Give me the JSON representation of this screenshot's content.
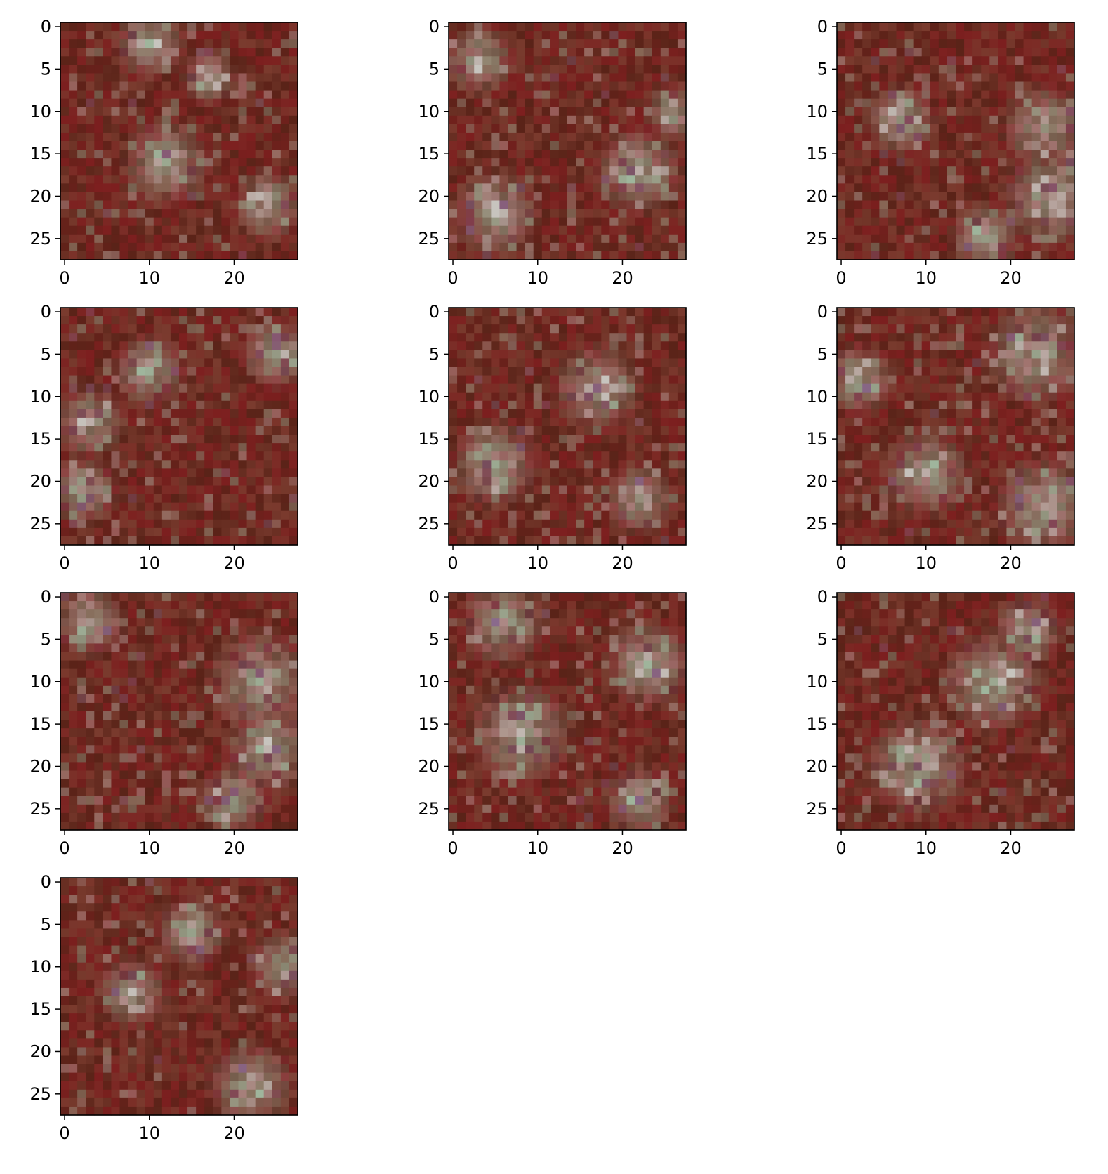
{
  "figure": {
    "background": "#ffffff",
    "layout": {
      "rows": 4,
      "cols": 3
    },
    "panel_count": 10
  },
  "panels": [
    {
      "image_shape": [
        28,
        28
      ],
      "xticks": [
        "0",
        "10",
        "20"
      ],
      "yticks": [
        "0",
        "5",
        "10",
        "15",
        "20",
        "25"
      ],
      "seed": 11,
      "blobs": [
        [
          10,
          2,
          3
        ],
        [
          12,
          16,
          4
        ],
        [
          24,
          21,
          3
        ],
        [
          17,
          6,
          2
        ]
      ]
    },
    {
      "image_shape": [
        28,
        28
      ],
      "xticks": [
        "0",
        "10",
        "20"
      ],
      "yticks": [
        "0",
        "5",
        "10",
        "15",
        "20",
        "25"
      ],
      "seed": 23,
      "blobs": [
        [
          3,
          4,
          3
        ],
        [
          22,
          17,
          4
        ],
        [
          5,
          22,
          4
        ],
        [
          26,
          10,
          2
        ]
      ]
    },
    {
      "image_shape": [
        28,
        28
      ],
      "xticks": [
        "0",
        "10",
        "20"
      ],
      "yticks": [
        "0",
        "5",
        "10",
        "15",
        "20",
        "25"
      ],
      "seed": 37,
      "blobs": [
        [
          24,
          12,
          4
        ],
        [
          25,
          20,
          5
        ],
        [
          7,
          11,
          3
        ],
        [
          17,
          25,
          3
        ]
      ]
    },
    {
      "image_shape": [
        28,
        28
      ],
      "xticks": [
        "0",
        "10",
        "20"
      ],
      "yticks": [
        "0",
        "5",
        "10",
        "15",
        "20",
        "25"
      ],
      "seed": 41,
      "blobs": [
        [
          3,
          13,
          3
        ],
        [
          2,
          21,
          3
        ],
        [
          25,
          5,
          3
        ],
        [
          10,
          7,
          3
        ]
      ]
    },
    {
      "image_shape": [
        28,
        28
      ],
      "xticks": [
        "0",
        "10",
        "20"
      ],
      "yticks": [
        "0",
        "5",
        "10",
        "15",
        "20",
        "25"
      ],
      "seed": 53,
      "blobs": [
        [
          5,
          18,
          4
        ],
        [
          17,
          9,
          4
        ],
        [
          22,
          22,
          3
        ]
      ]
    },
    {
      "image_shape": [
        28,
        28
      ],
      "xticks": [
        "0",
        "10",
        "20"
      ],
      "yticks": [
        "0",
        "5",
        "10",
        "15",
        "20",
        "25"
      ],
      "seed": 67,
      "blobs": [
        [
          23,
          5,
          5
        ],
        [
          24,
          23,
          5
        ],
        [
          10,
          19,
          4
        ],
        [
          2,
          8,
          3
        ]
      ]
    },
    {
      "image_shape": [
        28,
        28
      ],
      "xticks": [
        "0",
        "10",
        "20"
      ],
      "yticks": [
        "0",
        "5",
        "10",
        "15",
        "20",
        "25"
      ],
      "seed": 79,
      "blobs": [
        [
          23,
          10,
          5
        ],
        [
          24,
          18,
          4
        ],
        [
          3,
          3,
          3
        ],
        [
          20,
          24,
          3
        ]
      ]
    },
    {
      "image_shape": [
        28,
        28
      ],
      "xticks": [
        "0",
        "10",
        "20"
      ],
      "yticks": [
        "0",
        "5",
        "10",
        "15",
        "20",
        "25"
      ],
      "seed": 83,
      "blobs": [
        [
          6,
          3,
          4
        ],
        [
          8,
          16,
          5
        ],
        [
          23,
          8,
          4
        ],
        [
          22,
          24,
          3
        ]
      ]
    },
    {
      "image_shape": [
        28,
        28
      ],
      "xticks": [
        "0",
        "10",
        "20"
      ],
      "yticks": [
        "0",
        "5",
        "10",
        "15",
        "20",
        "25"
      ],
      "seed": 97,
      "blobs": [
        [
          18,
          10,
          5
        ],
        [
          9,
          20,
          5
        ],
        [
          22,
          4,
          3
        ]
      ]
    },
    {
      "image_shape": [
        28,
        28
      ],
      "xticks": [
        "0",
        "10",
        "20"
      ],
      "yticks": [
        "0",
        "5",
        "10",
        "15",
        "20",
        "25"
      ],
      "seed": 101,
      "blobs": [
        [
          22,
          24,
          4
        ],
        [
          8,
          13,
          3
        ],
        [
          26,
          10,
          3
        ],
        [
          15,
          6,
          3
        ]
      ]
    }
  ],
  "palette": {
    "base_dark": "#5a2318",
    "base_mid": "#7a3b2e",
    "base_red": "#7d1f1f",
    "highlight_green": "#9fb59c",
    "highlight_pale": "#c7c4be",
    "highlight_violet": "#8a6a8c",
    "spine": "#000000",
    "tick_text": "#000000"
  }
}
